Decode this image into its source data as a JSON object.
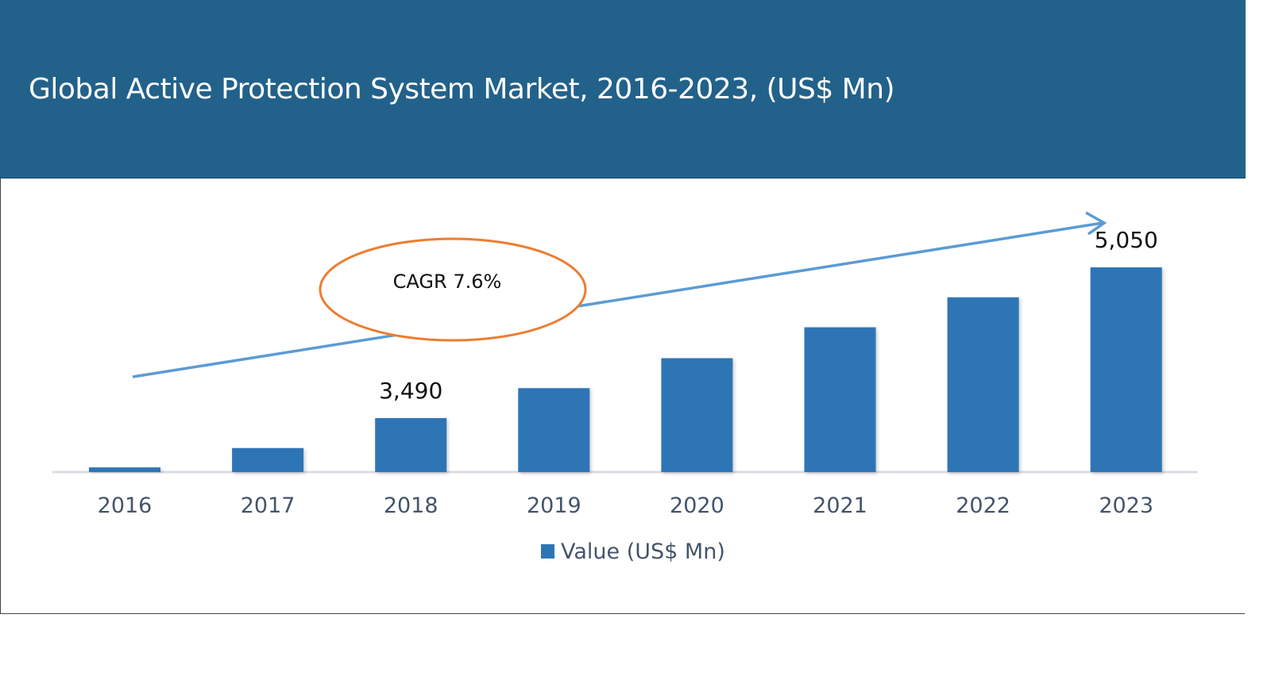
{
  "chart_data": {
    "type": "bar",
    "title": "Global Active Protection System Market, 2016-2023, (US$ Mn)",
    "categories": [
      "2016",
      "2017",
      "2018",
      "2019",
      "2020",
      "2021",
      "2022",
      "2023"
    ],
    "series": [
      {
        "name": "Value (US$ Mn)",
        "values": [
          2980,
          3180,
          3490,
          3800,
          4110,
          4430,
          4740,
          5050
        ]
      }
    ],
    "data_labels": {
      "2018": "3,490",
      "2023": "5,050"
    },
    "annotation": "CAGR 7.6%",
    "ylim": [
      2932,
      5050
    ],
    "grid": false,
    "legend": "bottom",
    "colors": {
      "bar": "#2E75B6",
      "header": "#22618A",
      "arrow": "#5B9BD5",
      "ellipse": "#ED7D31",
      "tick": "#44546A"
    }
  }
}
